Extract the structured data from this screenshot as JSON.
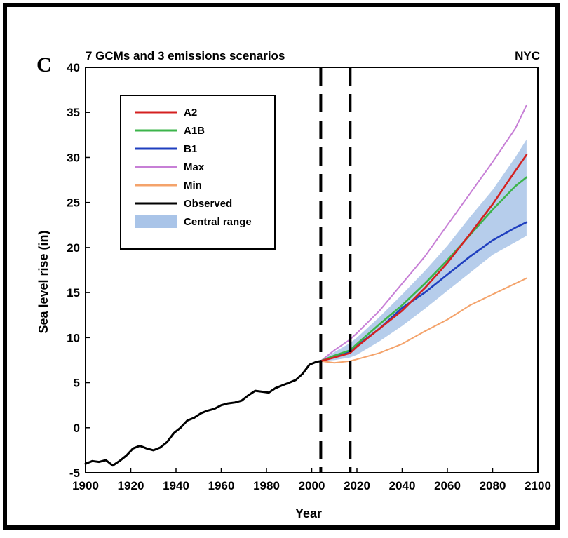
{
  "chart_data": {
    "type": "line",
    "panel_label": "C",
    "title": "7 GCMs and 3 emissions scenarios",
    "location": "NYC",
    "xlabel": "Year",
    "ylabel": "Sea level rise (in)",
    "xlim": [
      1900,
      2100
    ],
    "ylim": [
      -5,
      40
    ],
    "xticks": [
      1900,
      1920,
      1940,
      1960,
      1980,
      2000,
      2020,
      2040,
      2060,
      2080,
      2100
    ],
    "yticks": [
      -5,
      0,
      5,
      10,
      15,
      20,
      25,
      30,
      35,
      40
    ],
    "xtick_labels": [
      "1900",
      "1920",
      "1940",
      "1960",
      "1980",
      "2000",
      "2020",
      "2040",
      "2060",
      "2080",
      "2100"
    ],
    "ytick_labels": [
      "-5",
      "0",
      "5",
      "10",
      "15",
      "20",
      "25",
      "30",
      "35",
      "40"
    ],
    "grid": false,
    "legend_position": "top-left",
    "vertical_dashed_lines": [
      2004,
      2017
    ],
    "colors": {
      "A2": "#d42020",
      "A1B": "#3cb44b",
      "B1": "#1f3fbf",
      "Max": "#c77fd6",
      "Min": "#f4a36b",
      "Observed": "#000000",
      "Central range": "#a9c4e8"
    },
    "legend": [
      {
        "label": "A2",
        "key": "A2",
        "kind": "line"
      },
      {
        "label": "A1B",
        "key": "A1B",
        "kind": "line"
      },
      {
        "label": "B1",
        "key": "B1",
        "kind": "line"
      },
      {
        "label": "Max",
        "key": "Max",
        "kind": "line"
      },
      {
        "label": "Min",
        "key": "Min",
        "kind": "line"
      },
      {
        "label": "Observed",
        "key": "Observed",
        "kind": "line"
      },
      {
        "label": "Central range",
        "key": "Central range",
        "kind": "band"
      }
    ],
    "series": [
      {
        "name": "Observed",
        "x": [
          1900,
          1903,
          1906,
          1909,
          1912,
          1915,
          1918,
          1921,
          1924,
          1927,
          1930,
          1933,
          1936,
          1939,
          1942,
          1945,
          1948,
          1951,
          1954,
          1957,
          1960,
          1963,
          1966,
          1969,
          1972,
          1975,
          1978,
          1981,
          1984,
          1987,
          1990,
          1993,
          1996,
          1999,
          2002,
          2004
        ],
        "y": [
          -4.0,
          -3.7,
          -3.8,
          -3.6,
          -4.2,
          -3.7,
          -3.1,
          -2.3,
          -2.0,
          -2.3,
          -2.5,
          -2.2,
          -1.6,
          -0.6,
          0.0,
          0.8,
          1.1,
          1.6,
          1.9,
          2.1,
          2.5,
          2.7,
          2.8,
          3.0,
          3.6,
          4.1,
          4.0,
          3.9,
          4.4,
          4.7,
          5.0,
          5.3,
          6.0,
          7.0,
          7.3,
          7.4
        ]
      },
      {
        "name": "A2",
        "x": [
          2004,
          2010,
          2017,
          2020,
          2030,
          2040,
          2050,
          2060,
          2070,
          2080,
          2090,
          2095
        ],
        "y": [
          7.4,
          7.8,
          8.3,
          9.0,
          11.0,
          13.0,
          15.5,
          18.3,
          21.5,
          24.8,
          28.5,
          30.3
        ]
      },
      {
        "name": "A1B",
        "x": [
          2004,
          2010,
          2017,
          2020,
          2030,
          2040,
          2050,
          2060,
          2070,
          2080,
          2090,
          2095
        ],
        "y": [
          7.4,
          8.0,
          8.6,
          9.3,
          11.5,
          13.6,
          16.0,
          18.6,
          21.4,
          24.2,
          26.8,
          27.8
        ]
      },
      {
        "name": "B1",
        "x": [
          2004,
          2010,
          2017,
          2020,
          2030,
          2040,
          2050,
          2060,
          2070,
          2080,
          2090,
          2095
        ],
        "y": [
          7.4,
          7.9,
          8.4,
          9.1,
          11.0,
          13.3,
          15.0,
          17.0,
          19.0,
          20.8,
          22.2,
          22.8
        ]
      },
      {
        "name": "Max",
        "x": [
          2004,
          2010,
          2017,
          2020,
          2030,
          2040,
          2050,
          2060,
          2070,
          2080,
          2090,
          2095
        ],
        "y": [
          7.4,
          8.6,
          9.8,
          10.5,
          13.0,
          16.0,
          19.0,
          22.5,
          26.0,
          29.5,
          33.2,
          35.8
        ]
      },
      {
        "name": "Min",
        "x": [
          2004,
          2010,
          2017,
          2020,
          2030,
          2040,
          2050,
          2060,
          2070,
          2080,
          2090,
          2095
        ],
        "y": [
          7.4,
          7.2,
          7.4,
          7.6,
          8.3,
          9.3,
          10.7,
          12.0,
          13.6,
          14.8,
          16.0,
          16.6
        ]
      }
    ],
    "central_range": {
      "name": "Central range",
      "x": [
        2004,
        2010,
        2017,
        2020,
        2030,
        2040,
        2050,
        2060,
        2070,
        2080,
        2090,
        2095
      ],
      "low": [
        7.4,
        7.5,
        7.8,
        8.1,
        9.6,
        11.3,
        13.2,
        15.2,
        17.2,
        19.2,
        20.6,
        21.3
      ],
      "high": [
        7.4,
        8.4,
        9.4,
        10.0,
        12.3,
        14.8,
        17.4,
        20.2,
        23.4,
        26.4,
        30.0,
        32.0
      ]
    }
  }
}
